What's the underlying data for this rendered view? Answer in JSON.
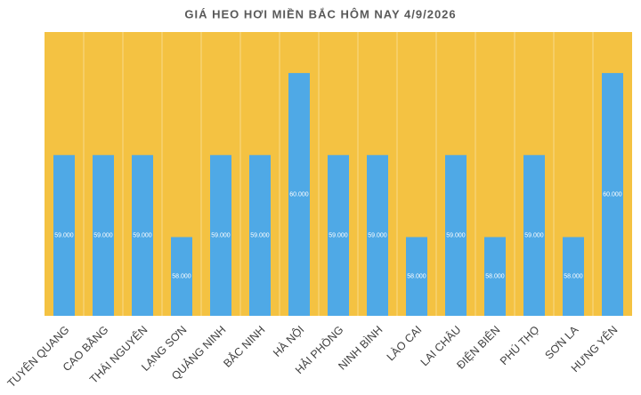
{
  "chart_data": {
    "type": "bar",
    "title": "GIÁ HEO HƠI MIỀN BẮC HÔM NAY 4/9/2026",
    "categories": [
      "TUYÊN QUANG",
      "CAO BẰNG",
      "THÁI NGUYÊN",
      "LẠNG SƠN",
      "QUẢNG NINH",
      "BẮC NINH",
      "HÀ NỘI",
      "HẢI PHÒNG",
      "NINH BÌNH",
      "LÀO CAI",
      "LAI CHÂU",
      "ĐIỆN BIÊN",
      "PHÚ THỌ",
      "SƠN LA",
      "HƯNG YÊN"
    ],
    "values": [
      59000,
      59000,
      59000,
      58000,
      59000,
      59000,
      60000,
      59000,
      59000,
      58000,
      59000,
      58000,
      59000,
      58000,
      60000
    ],
    "value_labels": [
      "59.000",
      "59.000",
      "59.000",
      "58.000",
      "59.000",
      "59.000",
      "60.000",
      "59.000",
      "59.000",
      "58.000",
      "59.000",
      "58.000",
      "59.000",
      "58.000",
      "60.000"
    ],
    "color": "#4fa9e6",
    "plot_background": "#f4c242",
    "ylim": [
      57040,
      60500
    ]
  }
}
